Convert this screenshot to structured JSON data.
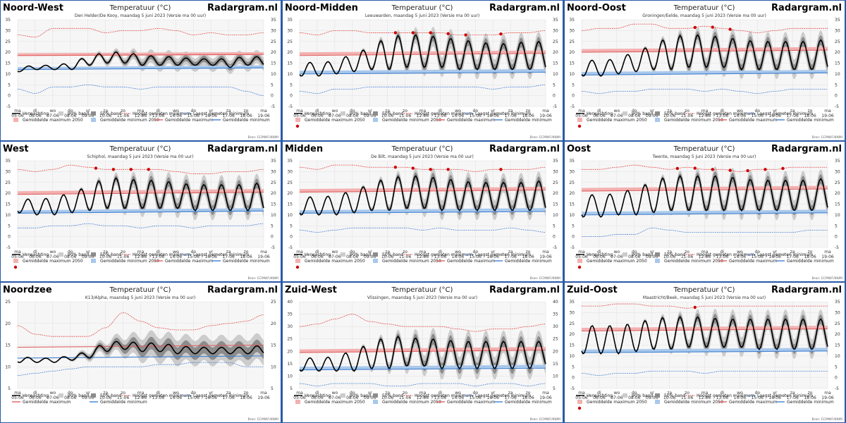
{
  "site": "Radargram.nl",
  "chart_title": "Temperatuur (°C)",
  "source_label": "Bron: ECMWF/KNMI",
  "x_ticks": [
    [
      "ma",
      "05-06"
    ],
    [
      "di",
      "06-06"
    ],
    [
      "wo",
      "07-06"
    ],
    [
      "do",
      "08-06"
    ],
    [
      "vr",
      "09-06"
    ],
    [
      "za",
      "10-06"
    ],
    [
      "zo",
      "11-06"
    ],
    [
      "ma",
      "12-06"
    ],
    [
      "di",
      "13-06"
    ],
    [
      "wo",
      "14-06"
    ],
    [
      "do",
      "15-06"
    ],
    [
      "vr",
      "16-06"
    ],
    [
      "za",
      "17-06"
    ],
    [
      "zo",
      "18-06"
    ],
    [
      "ma",
      "19-06"
    ]
  ],
  "legend": {
    "verwachting": "Verwachting",
    "band90": "90% band",
    "band50": "50% band",
    "hoogst": "Hoogst gemeten maximum",
    "laagst": "Laagst gemeten minimum",
    "gem_max_2050": "Gemiddelde maximum 2050",
    "gem_min_2050": "Gemiddelde minimum 2050",
    "gem_max": "Gemiddelde maximum",
    "gem_min": "Gemiddelde minimum",
    "extreem": "Extreem warme verwachting"
  },
  "colors": {
    "forecast": "#000000",
    "band90": "#cccccc",
    "band50": "#8c8c8c",
    "record_max": "#e03030",
    "record_min": "#3070d0",
    "avg_max": "#e06060",
    "avg_min": "#4080d0",
    "avg_max_2050": "#f4b0b0",
    "avg_min_2050": "#a8c8ec",
    "extreme": "#cc0000",
    "region_title": "#000000"
  },
  "chart_data": [
    {
      "type": "line",
      "region": "Noord-West",
      "station": "Den Helder/De Kooy, maandag 5 juni 2023 (Versie ma 00 uur)",
      "ylim": [
        -5,
        35
      ],
      "yticks": [
        -5,
        0,
        5,
        10,
        15,
        20,
        25,
        30,
        35
      ],
      "amp_scale": 0.35,
      "daily_max": [
        13,
        14,
        14,
        15,
        18,
        20,
        20,
        19,
        18,
        18,
        17,
        17,
        17,
        18,
        18
      ],
      "daily_min": [
        11,
        12,
        12,
        12,
        14,
        15,
        15,
        14,
        14,
        14,
        14,
        14,
        13,
        14,
        14
      ],
      "record_max": [
        28,
        27,
        31,
        31,
        31,
        29,
        30,
        30,
        31,
        30,
        28,
        29,
        28,
        28,
        29
      ],
      "record_min": [
        3,
        1,
        4,
        4,
        5,
        4,
        4,
        3,
        4,
        4,
        4,
        4,
        4,
        2,
        0
      ],
      "avg_max": [
        18.5,
        19
      ],
      "avg_min": [
        12,
        12.8
      ],
      "avg_max_2050": [
        18.9,
        19.4
      ],
      "avg_min_2050": [
        12.5,
        13.3
      ],
      "extreme_days": [],
      "legend_extreme": false
    },
    {
      "type": "line",
      "region": "Noord-Midden",
      "station": "Leeuwarden, maandag 5 juni 2023 (Versie ma 00 uur)",
      "ylim": [
        -5,
        35
      ],
      "yticks": [
        -5,
        0,
        5,
        10,
        15,
        20,
        25,
        30,
        35
      ],
      "amp_scale": 1,
      "daily_max": [
        16,
        15,
        16,
        19,
        22,
        27,
        28,
        28,
        27,
        26,
        25,
        24,
        24,
        25,
        25
      ],
      "daily_min": [
        9,
        9,
        10,
        11,
        12,
        12,
        13,
        13,
        13,
        12,
        12,
        12,
        12,
        12,
        12
      ],
      "record_max": [
        29,
        28,
        30,
        30,
        29,
        29,
        29,
        29,
        29,
        28,
        28,
        28,
        29,
        29,
        30
      ],
      "record_min": [
        2,
        1,
        3,
        3,
        4,
        4,
        4,
        4,
        4,
        4,
        4,
        3,
        4,
        4,
        5
      ],
      "avg_max": [
        18.5,
        19.5
      ],
      "avg_min": [
        10,
        10.8
      ],
      "avg_max_2050": [
        19.3,
        20.2
      ],
      "avg_min_2050": [
        10.8,
        11.6
      ],
      "extreme_days": [
        6,
        7,
        8,
        9,
        10,
        12
      ],
      "legend_extreme": true
    },
    {
      "type": "line",
      "region": "Noord-Oost",
      "station": "Groningen/Eelde, maandag 5 juni 2023 (Versie ma 00 uur)",
      "ylim": [
        -5,
        35
      ],
      "yticks": [
        -5,
        0,
        5,
        10,
        15,
        20,
        25,
        30,
        35
      ],
      "amp_scale": 1,
      "daily_max": [
        17,
        16,
        17,
        20,
        23,
        27,
        28,
        28,
        27,
        26,
        25,
        25,
        25,
        25,
        26
      ],
      "daily_min": [
        9,
        9,
        10,
        11,
        12,
        12,
        13,
        13,
        13,
        12,
        12,
        12,
        12,
        12,
        12
      ],
      "record_max": [
        30,
        31,
        31,
        33,
        33,
        31,
        31,
        32,
        31,
        30,
        29,
        30,
        31,
        31,
        31
      ],
      "record_min": [
        2,
        1,
        2,
        2,
        3,
        3,
        3,
        2,
        3,
        2,
        1,
        2,
        3,
        3,
        3
      ],
      "avg_max": [
        20,
        21
      ],
      "avg_min": [
        9.5,
        10.5
      ],
      "avg_max_2050": [
        20.8,
        21.8
      ],
      "avg_min_2050": [
        10.3,
        11.2
      ],
      "extreme_days": [
        7,
        8,
        9
      ],
      "legend_extreme": true
    },
    {
      "type": "line",
      "region": "West",
      "station": "Schiphol, maandag 5 juni 2023 (Versie ma 00 uur)",
      "ylim": [
        -5,
        35
      ],
      "yticks": [
        -5,
        0,
        5,
        10,
        15,
        20,
        25,
        30,
        35
      ],
      "amp_scale": 1,
      "daily_max": [
        18,
        17,
        18,
        20,
        23,
        27,
        27,
        26,
        26,
        25,
        24,
        24,
        24,
        24,
        25
      ],
      "daily_min": [
        11,
        10,
        10,
        11,
        12,
        13,
        13,
        13,
        13,
        13,
        12,
        12,
        12,
        12,
        12
      ],
      "record_max": [
        31,
        30,
        31,
        33,
        32,
        31,
        31,
        31,
        31,
        30,
        29,
        29,
        30,
        30,
        31
      ],
      "record_min": [
        4,
        4,
        5,
        5,
        6,
        5,
        5,
        4,
        5,
        5,
        4,
        5,
        5,
        5,
        6
      ],
      "avg_max": [
        19.5,
        20.5
      ],
      "avg_min": [
        10.8,
        11.8
      ],
      "avg_max_2050": [
        20.3,
        21.3
      ],
      "avg_min_2050": [
        11.5,
        12.5
      ],
      "extreme_days": [
        5,
        6,
        7,
        8
      ],
      "legend_extreme": true
    },
    {
      "type": "line",
      "region": "Midden",
      "station": "De Bilt, maandag 5 juni 2023 (Versie ma 00 uur)",
      "ylim": [
        -5,
        35
      ],
      "yticks": [
        -5,
        0,
        5,
        10,
        15,
        20,
        25,
        30,
        35
      ],
      "amp_scale": 1,
      "daily_max": [
        19,
        18,
        19,
        21,
        24,
        27,
        28,
        28,
        27,
        26,
        25,
        25,
        25,
        25,
        26
      ],
      "daily_min": [
        10,
        10,
        10,
        11,
        12,
        12,
        13,
        13,
        12,
        12,
        12,
        12,
        12,
        12,
        12
      ],
      "record_max": [
        32,
        31,
        33,
        33,
        32,
        32,
        32,
        31,
        31,
        31,
        30,
        31,
        31,
        31,
        32
      ],
      "record_min": [
        3,
        2,
        3,
        4,
        4,
        4,
        4,
        3,
        4,
        3,
        3,
        3,
        4,
        3,
        2
      ],
      "avg_max": [
        20.5,
        21.5
      ],
      "avg_min": [
        10.8,
        11.6
      ],
      "avg_max_2050": [
        21.3,
        22.3
      ],
      "avg_min_2050": [
        11.5,
        12.5
      ],
      "extreme_days": [
        6,
        7,
        8,
        9,
        12
      ],
      "legend_extreme": true
    },
    {
      "type": "line",
      "region": "Oost",
      "station": "Twente, maandag 5 juni 2023 (Versie ma 00 uur)",
      "ylim": [
        -5,
        35
      ],
      "yticks": [
        -5,
        0,
        5,
        10,
        15,
        20,
        25,
        30,
        35
      ],
      "amp_scale": 1,
      "daily_max": [
        20,
        19,
        20,
        22,
        25,
        28,
        28,
        28,
        28,
        27,
        26,
        26,
        26,
        26,
        27
      ],
      "daily_min": [
        9,
        9,
        10,
        10,
        11,
        12,
        12,
        12,
        12,
        12,
        12,
        12,
        12,
        12,
        12
      ],
      "record_max": [
        31,
        31,
        32,
        33,
        32,
        31,
        32,
        31,
        31,
        30,
        31,
        31,
        32,
        32,
        32
      ],
      "record_min": [
        0,
        0,
        1,
        1,
        4,
        3,
        2,
        2,
        2,
        2,
        2,
        2,
        2,
        3,
        3
      ],
      "avg_max": [
        21,
        22
      ],
      "avg_min": [
        10,
        11
      ],
      "avg_max_2050": [
        21.8,
        22.8
      ],
      "avg_min_2050": [
        10.8,
        11.8
      ],
      "extreme_days": [
        6,
        7,
        8,
        9,
        10,
        11,
        12
      ],
      "legend_extreme": true
    },
    {
      "type": "line",
      "region": "Noordzee",
      "station": "K13/Alpha, maandag 5 juni 2023 (Versie ma 00 uur)",
      "ylim": [
        5,
        25
      ],
      "yticks": [
        5,
        10,
        15,
        20,
        25
      ],
      "amp_scale": 0.3,
      "daily_max": [
        12.5,
        12,
        12,
        12.5,
        13.5,
        15.5,
        16,
        15.5,
        15.5,
        15,
        14.5,
        14.5,
        14.5,
        14.5,
        15
      ],
      "daily_min": [
        11,
        11,
        11,
        11.5,
        12,
        13.5,
        14,
        13.5,
        13.5,
        13,
        13,
        13,
        13,
        13,
        13
      ],
      "record_max": [
        19.5,
        17.5,
        17,
        17,
        17,
        19,
        22.5,
        20.5,
        19,
        18.5,
        18.5,
        19.5,
        20,
        20.5,
        22
      ],
      "record_min": [
        8,
        8.5,
        9,
        9.5,
        10,
        10,
        10,
        10,
        10.5,
        10.5,
        11,
        11,
        11,
        10,
        10
      ],
      "avg_max": [
        14.5,
        15
      ],
      "avg_min": [
        12,
        12.5
      ],
      "avg_max_2050": [],
      "avg_min_2050": [],
      "extreme_days": [],
      "legend_extreme": false
    },
    {
      "type": "line",
      "region": "Zuid-West",
      "station": "Vlissingen, maandag 5 juni 2023 (Versie ma 00 uur)",
      "ylim": [
        5,
        40
      ],
      "yticks": [
        5,
        10,
        15,
        20,
        25,
        30,
        35,
        40
      ],
      "amp_scale": 1,
      "daily_max": [
        18,
        17,
        18,
        20,
        23,
        26,
        26,
        25,
        25,
        24,
        24,
        24,
        24,
        24,
        24
      ],
      "daily_min": [
        12,
        12,
        12,
        12,
        13,
        13,
        14,
        14,
        13,
        13,
        13,
        13,
        13,
        13,
        14
      ],
      "record_max": [
        30,
        31,
        33,
        35,
        32,
        31,
        30,
        30,
        30,
        29,
        28,
        29,
        29,
        30,
        31
      ],
      "record_min": [
        7,
        6,
        7,
        7,
        7,
        6,
        6,
        7,
        7,
        7,
        6,
        7,
        7,
        6,
        7
      ],
      "avg_max": [
        19.5,
        20.5
      ],
      "avg_min": [
        12.5,
        13.2
      ],
      "avg_max_2050": [
        20.2,
        21.2
      ],
      "avg_min_2050": [
        13.2,
        14
      ],
      "extreme_days": [],
      "legend_extreme": false
    },
    {
      "type": "line",
      "region": "Zuid-Oost",
      "station": "Maastricht/Beek, maandag 5 juni 2023 (Versie ma 00 uur)",
      "ylim": [
        -5,
        35
      ],
      "yticks": [
        -5,
        0,
        5,
        10,
        15,
        20,
        25,
        30,
        35
      ],
      "amp_scale": 1,
      "daily_max": [
        24,
        24,
        24,
        25,
        27,
        28,
        28,
        28,
        27,
        27,
        27,
        27,
        27,
        27,
        27
      ],
      "daily_min": [
        11,
        11,
        11,
        12,
        13,
        13,
        14,
        14,
        14,
        14,
        13,
        13,
        13,
        13,
        13
      ],
      "record_max": [
        33,
        33,
        34,
        34,
        33,
        33,
        32,
        33,
        33,
        33,
        33,
        33,
        33,
        33,
        33
      ],
      "record_min": [
        2,
        1,
        2,
        2,
        3,
        3,
        3,
        2,
        3,
        3,
        3,
        3,
        3,
        3,
        3
      ],
      "avg_max": [
        21.5,
        22.5
      ],
      "avg_min": [
        11.5,
        12.3
      ],
      "avg_max_2050": [
        22.3,
        23.3
      ],
      "avg_min_2050": [
        12.3,
        13.1
      ],
      "extreme_days": [
        7
      ],
      "legend_extreme": true
    }
  ]
}
